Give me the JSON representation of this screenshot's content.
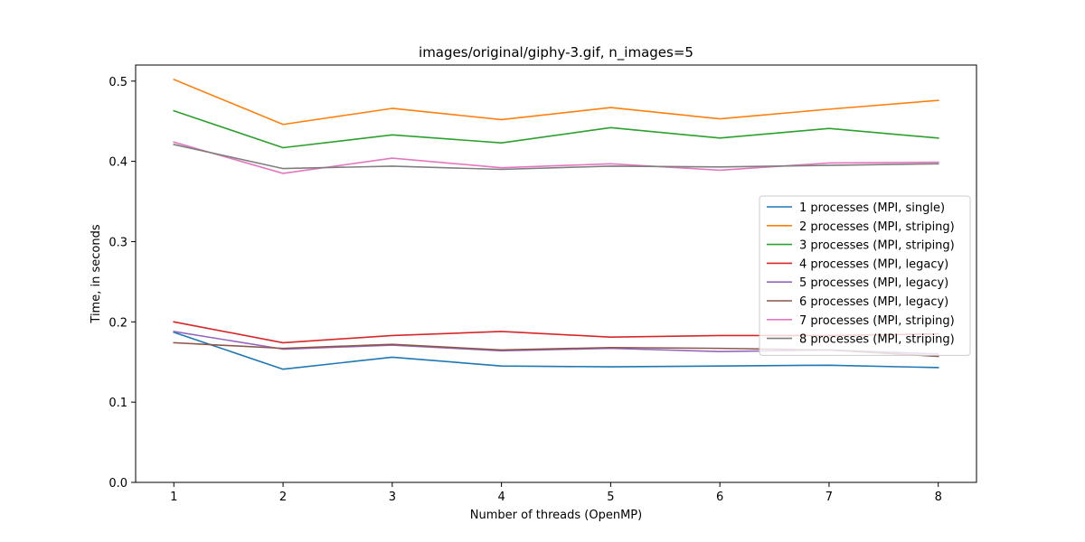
{
  "chart_data": {
    "type": "line",
    "title": "images/original/giphy-3.gif, n_images=5",
    "xlabel": "Number of threads (OpenMP)",
    "ylabel": "Time, in seconds",
    "x": [
      1,
      2,
      3,
      4,
      5,
      6,
      7,
      8
    ],
    "xlim": [
      0.65,
      8.35
    ],
    "ylim": [
      0.0,
      0.52
    ],
    "xticks": [
      1,
      2,
      3,
      4,
      5,
      6,
      7,
      8
    ],
    "yticks": [
      0.0,
      0.1,
      0.2,
      0.3,
      0.4,
      0.5
    ],
    "ytick_labels": [
      "0.0",
      "0.1",
      "0.2",
      "0.3",
      "0.4",
      "0.5"
    ],
    "grid": false,
    "legend_position": "center-right",
    "series": [
      {
        "name": "1 processes (MPI, single)",
        "color": "#1f77b4",
        "values": [
          0.187,
          0.141,
          0.156,
          0.145,
          0.144,
          0.145,
          0.146,
          0.143
        ]
      },
      {
        "name": "2 processes (MPI, striping)",
        "color": "#ff7f0e",
        "values": [
          0.502,
          0.446,
          0.466,
          0.452,
          0.467,
          0.453,
          0.465,
          0.476
        ]
      },
      {
        "name": "3 processes (MPI, striping)",
        "color": "#2ca02c",
        "values": [
          0.463,
          0.417,
          0.433,
          0.423,
          0.442,
          0.429,
          0.441,
          0.429
        ]
      },
      {
        "name": "4 processes (MPI, legacy)",
        "color": "#d62728",
        "values": [
          0.2,
          0.174,
          0.183,
          0.188,
          0.181,
          0.183,
          0.183,
          0.185
        ]
      },
      {
        "name": "5 processes (MPI, legacy)",
        "color": "#9467bd",
        "values": [
          0.188,
          0.166,
          0.171,
          0.164,
          0.167,
          0.163,
          0.165,
          0.16
        ]
      },
      {
        "name": "6 processes (MPI, legacy)",
        "color": "#8c564b",
        "values": [
          0.174,
          0.167,
          0.172,
          0.165,
          0.168,
          0.167,
          0.165,
          0.157
        ]
      },
      {
        "name": "7 processes (MPI, striping)",
        "color": "#e377c2",
        "values": [
          0.424,
          0.385,
          0.404,
          0.392,
          0.397,
          0.389,
          0.398,
          0.399
        ]
      },
      {
        "name": "8 processes (MPI, striping)",
        "color": "#7f7f7f",
        "values": [
          0.421,
          0.391,
          0.394,
          0.39,
          0.394,
          0.393,
          0.395,
          0.397
        ]
      }
    ]
  }
}
